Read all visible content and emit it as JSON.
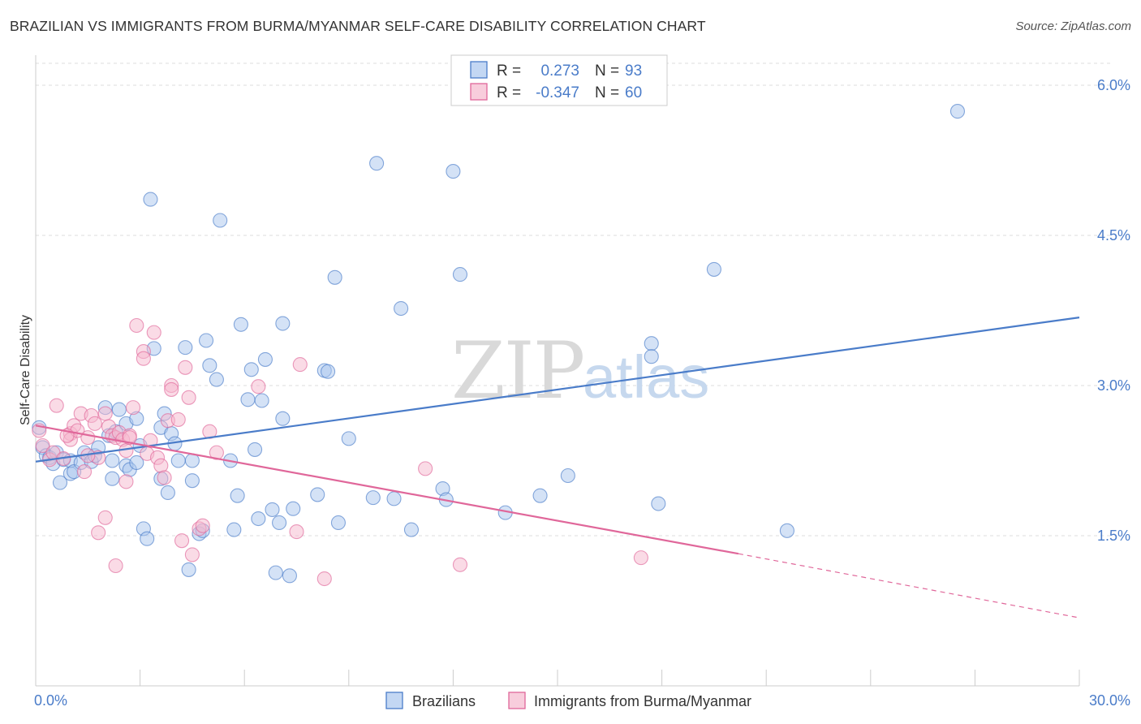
{
  "title": "BRAZILIAN VS IMMIGRANTS FROM BURMA/MYANMAR SELF-CARE DISABILITY CORRELATION CHART",
  "source": "Source: ZipAtlas.com",
  "colors": {
    "blue": "#4a7cc9",
    "blue_fill": "#a9c6ee",
    "pink": "#e0679a",
    "pink_fill": "#f5b8cd",
    "grid": "#dddddd"
  },
  "legend": {
    "r_label": "R =",
    "n_label": "N =",
    "series": [
      {
        "r": "0.273",
        "n": "93"
      },
      {
        "r": "-0.347",
        "n": "60"
      }
    ]
  },
  "watermark": {
    "zip": "ZIP",
    "atlas": "atlas"
  },
  "chart_data": {
    "type": "scatter",
    "ylabel": "Self-Care Disability",
    "x_tick_labels": [
      "0.0%",
      "30.0%"
    ],
    "y_tick_labels": [
      "1.5%",
      "3.0%",
      "4.5%",
      "6.0%"
    ],
    "xlim": [
      0,
      30
    ],
    "ylim": [
      0,
      6.3
    ],
    "y_ticks": [
      1.5,
      3.0,
      4.5,
      6.0
    ],
    "grid": true,
    "legend_position": "top-center",
    "series": [
      {
        "name": "Brazilians",
        "trend": {
          "x": [
            0,
            30
          ],
          "y": [
            2.24,
            3.68
          ]
        },
        "points": [
          [
            0.1,
            2.58
          ],
          [
            0.2,
            2.38
          ],
          [
            0.3,
            2.3
          ],
          [
            0.4,
            2.28
          ],
          [
            0.5,
            2.22
          ],
          [
            0.6,
            2.33
          ],
          [
            0.7,
            2.03
          ],
          [
            0.8,
            2.26
          ],
          [
            1.0,
            2.12
          ],
          [
            1.0,
            2.25
          ],
          [
            1.1,
            2.14
          ],
          [
            1.3,
            2.23
          ],
          [
            1.4,
            2.33
          ],
          [
            1.6,
            2.24
          ],
          [
            1.7,
            2.3
          ],
          [
            1.8,
            2.38
          ],
          [
            2.0,
            2.78
          ],
          [
            2.1,
            2.5
          ],
          [
            2.2,
            2.25
          ],
          [
            2.2,
            2.07
          ],
          [
            2.3,
            2.54
          ],
          [
            2.4,
            2.76
          ],
          [
            2.6,
            2.2
          ],
          [
            2.6,
            2.62
          ],
          [
            2.7,
            2.16
          ],
          [
            2.9,
            2.23
          ],
          [
            2.9,
            2.67
          ],
          [
            3.0,
            2.4
          ],
          [
            3.1,
            1.57
          ],
          [
            3.2,
            1.47
          ],
          [
            3.3,
            4.86
          ],
          [
            3.4,
            3.37
          ],
          [
            3.6,
            2.07
          ],
          [
            3.6,
            2.58
          ],
          [
            3.7,
            2.72
          ],
          [
            3.8,
            1.93
          ],
          [
            3.9,
            2.52
          ],
          [
            4.0,
            2.42
          ],
          [
            4.1,
            2.25
          ],
          [
            4.3,
            3.38
          ],
          [
            4.4,
            1.16
          ],
          [
            4.5,
            2.05
          ],
          [
            4.5,
            2.25
          ],
          [
            4.7,
            1.52
          ],
          [
            4.8,
            1.55
          ],
          [
            4.9,
            3.45
          ],
          [
            5.0,
            3.2
          ],
          [
            5.2,
            3.06
          ],
          [
            5.3,
            4.65
          ],
          [
            5.6,
            2.25
          ],
          [
            5.7,
            1.56
          ],
          [
            5.8,
            1.9
          ],
          [
            5.9,
            3.61
          ],
          [
            6.1,
            2.86
          ],
          [
            6.2,
            3.16
          ],
          [
            6.3,
            2.36
          ],
          [
            6.4,
            1.67
          ],
          [
            6.5,
            2.85
          ],
          [
            6.6,
            3.26
          ],
          [
            6.8,
            1.76
          ],
          [
            6.9,
            1.13
          ],
          [
            7.0,
            1.63
          ],
          [
            7.1,
            2.67
          ],
          [
            7.1,
            3.62
          ],
          [
            7.3,
            1.1
          ],
          [
            7.4,
            1.77
          ],
          [
            8.1,
            1.91
          ],
          [
            8.3,
            3.15
          ],
          [
            8.4,
            3.14
          ],
          [
            8.6,
            4.08
          ],
          [
            8.7,
            1.63
          ],
          [
            9.0,
            2.47
          ],
          [
            9.7,
            1.88
          ],
          [
            9.8,
            5.22
          ],
          [
            10.3,
            1.87
          ],
          [
            10.5,
            3.77
          ],
          [
            10.8,
            1.56
          ],
          [
            11.7,
            1.97
          ],
          [
            11.8,
            1.86
          ],
          [
            12.0,
            5.14
          ],
          [
            12.2,
            4.11
          ],
          [
            13.5,
            1.73
          ],
          [
            14.5,
            1.9
          ],
          [
            15.3,
            2.1
          ],
          [
            17.7,
            3.42
          ],
          [
            17.7,
            3.29
          ],
          [
            17.9,
            1.82
          ],
          [
            19.5,
            4.16
          ],
          [
            21.6,
            1.55
          ],
          [
            26.5,
            5.74
          ]
        ]
      },
      {
        "name": "Immigrants from Burma/Myanmar",
        "trend": {
          "x": [
            0,
            20.2
          ],
          "y": [
            2.6,
            1.32
          ]
        },
        "trend_dashed": {
          "x": [
            20.2,
            30
          ],
          "y": [
            1.32,
            0.68
          ]
        },
        "points": [
          [
            0.1,
            2.55
          ],
          [
            0.2,
            2.4
          ],
          [
            0.4,
            2.26
          ],
          [
            0.5,
            2.33
          ],
          [
            0.6,
            2.8
          ],
          [
            0.8,
            2.27
          ],
          [
            1.0,
            2.52
          ],
          [
            1.0,
            2.46
          ],
          [
            1.1,
            2.6
          ],
          [
            1.2,
            2.55
          ],
          [
            1.3,
            2.72
          ],
          [
            1.4,
            2.14
          ],
          [
            1.5,
            2.48
          ],
          [
            1.6,
            2.7
          ],
          [
            1.7,
            2.62
          ],
          [
            1.8,
            2.28
          ],
          [
            1.8,
            1.53
          ],
          [
            2.0,
            2.72
          ],
          [
            2.0,
            1.68
          ],
          [
            2.1,
            2.59
          ],
          [
            2.2,
            2.5
          ],
          [
            2.3,
            2.48
          ],
          [
            2.3,
            1.2
          ],
          [
            2.4,
            2.53
          ],
          [
            2.5,
            2.46
          ],
          [
            2.6,
            2.04
          ],
          [
            2.6,
            2.35
          ],
          [
            2.7,
            2.5
          ],
          [
            2.8,
            2.78
          ],
          [
            2.9,
            3.6
          ],
          [
            3.1,
            3.34
          ],
          [
            3.1,
            3.27
          ],
          [
            3.2,
            2.32
          ],
          [
            3.3,
            2.45
          ],
          [
            3.4,
            3.53
          ],
          [
            3.5,
            2.28
          ],
          [
            3.6,
            2.2
          ],
          [
            3.7,
            2.08
          ],
          [
            3.8,
            2.65
          ],
          [
            3.9,
            3.0
          ],
          [
            3.9,
            2.96
          ],
          [
            4.1,
            2.66
          ],
          [
            4.2,
            1.45
          ],
          [
            4.3,
            3.18
          ],
          [
            4.4,
            2.88
          ],
          [
            4.5,
            1.31
          ],
          [
            4.7,
            1.57
          ],
          [
            4.8,
            1.6
          ],
          [
            5.0,
            2.54
          ],
          [
            5.2,
            2.33
          ],
          [
            6.4,
            2.99
          ],
          [
            7.5,
            1.54
          ],
          [
            7.6,
            3.21
          ],
          [
            8.3,
            1.07
          ],
          [
            11.2,
            2.17
          ],
          [
            12.2,
            1.21
          ],
          [
            17.4,
            1.28
          ],
          [
            2.7,
            2.48
          ],
          [
            1.5,
            2.3
          ],
          [
            0.9,
            2.5
          ]
        ]
      }
    ]
  }
}
